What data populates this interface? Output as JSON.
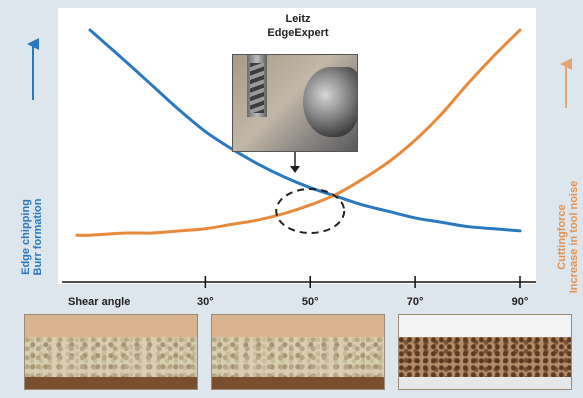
{
  "chart_data": {
    "type": "line",
    "x_tick_labels": [
      "Shear angle",
      "30°",
      "50°",
      "70°",
      "90°"
    ],
    "x_ticks": [
      30,
      50,
      70,
      90
    ],
    "x": [
      8,
      15,
      20,
      25,
      30,
      35,
      40,
      45,
      50,
      55,
      60,
      65,
      70,
      75,
      80,
      85,
      90
    ],
    "xlim": [
      8,
      90
    ],
    "ylim": [
      0,
      100
    ],
    "series": [
      {
        "color": "#2a78c0",
        "values": [
          100,
          85,
          74,
          63,
          53,
          45,
          38,
          32,
          27,
          23,
          19,
          16,
          13,
          11,
          9,
          8,
          7
        ]
      },
      {
        "color": "#e88a3c",
        "values": [
          5,
          6,
          6,
          7,
          8,
          10,
          12,
          15,
          19,
          24,
          31,
          39,
          49,
          61,
          75,
          88,
          100
        ]
      }
    ],
    "ylabel_left": [
      "Edge chipping",
      "Burr formation"
    ],
    "ylabel_right": [
      "Cuttingforce",
      "Increase in tool noise"
    ],
    "annotation": [
      "Leitz",
      "EdgeExpert"
    ],
    "highlight_x": 50
  },
  "colors": {
    "blue": "#2a78c0",
    "orange": "#e88a3c"
  }
}
